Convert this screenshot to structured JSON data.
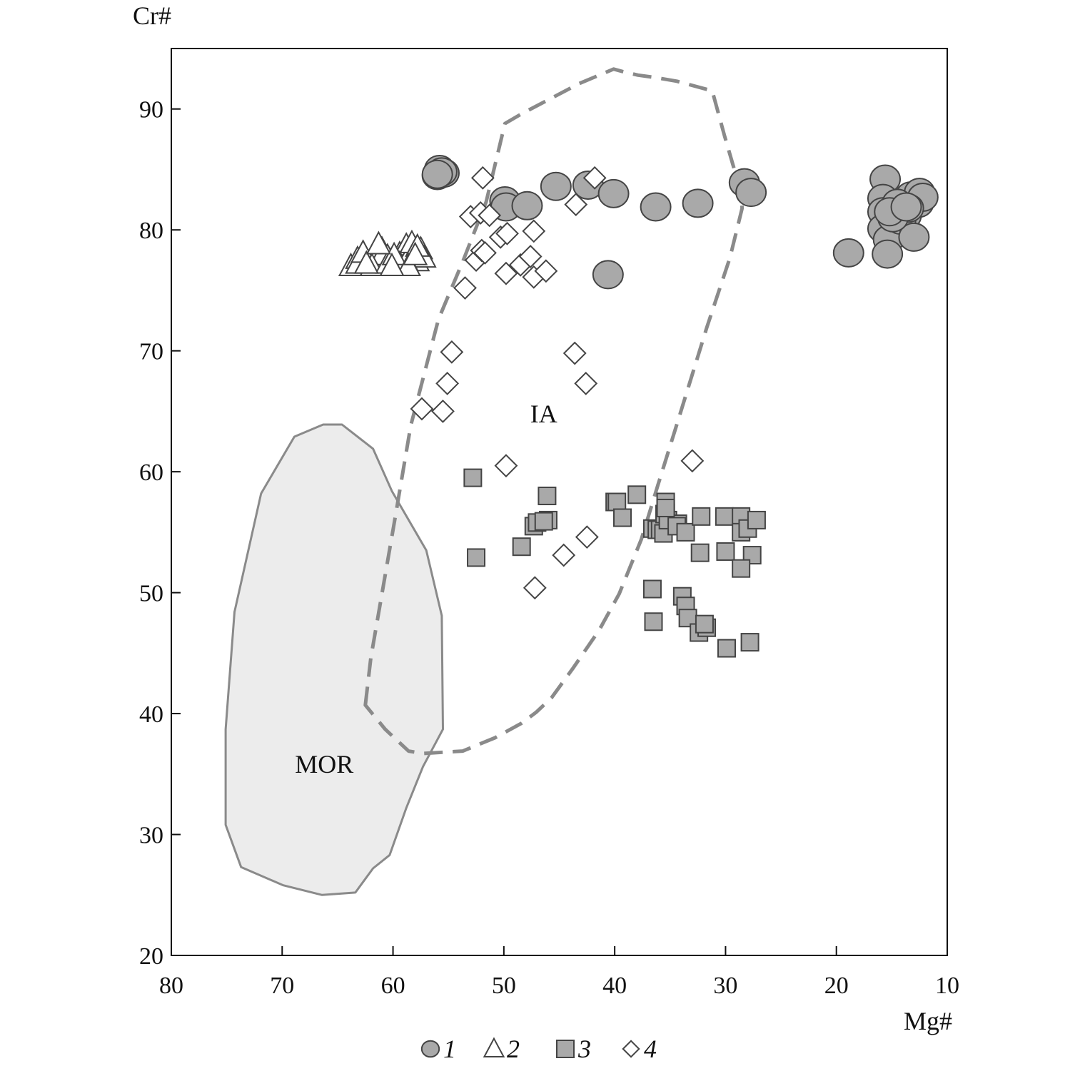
{
  "chart_data": {
    "type": "scatter",
    "xlabel": "Mg#",
    "ylabel": "Cr#",
    "xlim": [
      80,
      10
    ],
    "ylim": [
      20,
      95
    ],
    "x_ticks": [
      "80",
      "70",
      "60",
      "50",
      "40",
      "30",
      "20",
      "10"
    ],
    "y_ticks": [
      "20",
      "30",
      "40",
      "50",
      "60",
      "70",
      "80",
      "90"
    ],
    "grid": false,
    "legend_position": "bottom-center",
    "colors": {
      "marker_fill": "#a9a9a9",
      "marker_stroke": "#444444",
      "field_stroke": "#8a8a8a",
      "mor_fill": "#ececec"
    },
    "fields": [
      {
        "name": "MOR",
        "style": "solid-filled",
        "points": [
          [
            75.1,
            38.7
          ],
          [
            75.1,
            30.8
          ],
          [
            73.7,
            27.3
          ],
          [
            69.9,
            25.8
          ],
          [
            66.4,
            25.0
          ],
          [
            63.4,
            25.2
          ],
          [
            61.8,
            27.2
          ],
          [
            60.3,
            28.3
          ],
          [
            58.8,
            32.2
          ],
          [
            57.3,
            35.6
          ],
          [
            55.5,
            38.7
          ],
          [
            55.6,
            48.1
          ],
          [
            57.0,
            53.5
          ],
          [
            60.1,
            58.4
          ],
          [
            61.8,
            61.9
          ],
          [
            64.6,
            63.9
          ],
          [
            66.3,
            63.9
          ],
          [
            68.9,
            62.9
          ],
          [
            71.9,
            58.2
          ],
          [
            74.3,
            48.4
          ]
        ]
      },
      {
        "name": "IA",
        "style": "dashed",
        "points": [
          [
            62.5,
            40.7
          ],
          [
            62.0,
            44.6
          ],
          [
            59.9,
            55.7
          ],
          [
            58.4,
            63.8
          ],
          [
            55.9,
            72.6
          ],
          [
            53.7,
            77.4
          ],
          [
            51.6,
            82.3
          ],
          [
            49.9,
            88.8
          ],
          [
            48.4,
            89.6
          ],
          [
            45.7,
            90.9
          ],
          [
            43.2,
            92.1
          ],
          [
            40.1,
            93.3
          ],
          [
            39.3,
            93.1
          ],
          [
            37.9,
            92.8
          ],
          [
            36.3,
            92.6
          ],
          [
            34.4,
            92.3
          ],
          [
            31.2,
            91.5
          ],
          [
            30.1,
            87.8
          ],
          [
            28.7,
            83.4
          ],
          [
            28.5,
            81.8
          ],
          [
            29.6,
            77.7
          ],
          [
            31.7,
            71.9
          ],
          [
            34.3,
            64.2
          ],
          [
            36.1,
            58.9
          ],
          [
            37.6,
            54.4
          ],
          [
            39.6,
            49.9
          ],
          [
            41.4,
            46.9
          ],
          [
            43.8,
            43.7
          ],
          [
            45.7,
            41.3
          ],
          [
            47.1,
            40.1
          ],
          [
            48.4,
            39.2
          ],
          [
            50.8,
            38.0
          ],
          [
            52.4,
            37.4
          ],
          [
            53.7,
            36.9
          ],
          [
            57.3,
            36.7
          ],
          [
            58.6,
            36.9
          ],
          [
            60.7,
            38.7
          ]
        ]
      }
    ],
    "region_labels": [
      {
        "text": "MOR",
        "x": 66.2,
        "y": 35.8
      },
      {
        "text": "IA",
        "x": 46.4,
        "y": 64.8
      }
    ],
    "series": [
      {
        "name": "1",
        "marker": "circle",
        "points": [
          [
            55.8,
            85.0
          ],
          [
            56.0,
            84.5
          ],
          [
            55.4,
            84.7
          ],
          [
            55.6,
            84.8
          ],
          [
            56.0,
            84.6
          ],
          [
            49.9,
            82.4
          ],
          [
            49.8,
            81.9
          ],
          [
            47.9,
            82.0
          ],
          [
            45.3,
            83.6
          ],
          [
            42.4,
            83.7
          ],
          [
            40.1,
            83.0
          ],
          [
            36.3,
            81.9
          ],
          [
            32.5,
            82.2
          ],
          [
            28.3,
            83.9
          ],
          [
            27.7,
            83.1
          ],
          [
            40.6,
            76.3
          ],
          [
            18.9,
            78.1
          ],
          [
            15.6,
            84.2
          ],
          [
            15.8,
            82.6
          ],
          [
            15.8,
            81.5
          ],
          [
            15.8,
            80.1
          ],
          [
            15.3,
            79.2
          ],
          [
            15.4,
            78.0
          ],
          [
            13.3,
            82.8
          ],
          [
            13.7,
            81.2
          ],
          [
            14.2,
            80.8
          ],
          [
            12.6,
            82.2
          ],
          [
            12.5,
            83.1
          ],
          [
            12.2,
            82.7
          ],
          [
            13.0,
            79.4
          ],
          [
            13.5,
            81.8
          ],
          [
            14.5,
            82.2
          ],
          [
            14.9,
            81.0
          ],
          [
            15.2,
            81.5
          ],
          [
            13.7,
            81.9
          ]
        ]
      },
      {
        "name": "2",
        "marker": "triangle",
        "points": [
          [
            63.8,
            77.0
          ],
          [
            63.2,
            77.6
          ],
          [
            62.7,
            77.9
          ],
          [
            62.1,
            77.4
          ],
          [
            61.6,
            78.0
          ],
          [
            61.0,
            78.4
          ],
          [
            60.5,
            77.8
          ],
          [
            59.9,
            77.2
          ],
          [
            59.4,
            78.0
          ],
          [
            58.8,
            78.7
          ],
          [
            58.3,
            78.2
          ],
          [
            57.8,
            77.4
          ],
          [
            57.5,
            78.4
          ],
          [
            57.2,
            77.7
          ],
          [
            63.2,
            77.2
          ],
          [
            62.7,
            78.1
          ],
          [
            61.6,
            77.5
          ],
          [
            61.0,
            77.9
          ],
          [
            60.0,
            77.6
          ],
          [
            59.4,
            77.2
          ],
          [
            58.8,
            77.4
          ],
          [
            58.3,
            78.9
          ],
          [
            57.8,
            78.6
          ],
          [
            61.9,
            77.0
          ],
          [
            60.5,
            77.2
          ],
          [
            59.9,
            77.9
          ],
          [
            58.6,
            77.0
          ],
          [
            58.0,
            77.9
          ],
          [
            62.4,
            77.2
          ],
          [
            61.3,
            78.8
          ],
          [
            60.1,
            77.0
          ]
        ]
      },
      {
        "name": "3",
        "marker": "square",
        "points": [
          [
            52.8,
            59.5
          ],
          [
            52.5,
            52.9
          ],
          [
            48.4,
            53.8
          ],
          [
            47.3,
            55.5
          ],
          [
            47.0,
            55.8
          ],
          [
            46.1,
            58.0
          ],
          [
            46.0,
            56.0
          ],
          [
            46.4,
            55.9
          ],
          [
            40.0,
            57.5
          ],
          [
            39.8,
            57.5
          ],
          [
            39.3,
            56.2
          ],
          [
            38.0,
            58.1
          ],
          [
            36.6,
            55.3
          ],
          [
            36.2,
            55.2
          ],
          [
            35.9,
            55.2
          ],
          [
            35.6,
            54.9
          ],
          [
            35.4,
            57.5
          ],
          [
            35.4,
            56.6
          ],
          [
            35.5,
            56.5
          ],
          [
            35.2,
            56.0
          ],
          [
            34.3,
            55.7
          ],
          [
            34.4,
            55.5
          ],
          [
            33.6,
            55.0
          ],
          [
            32.2,
            56.3
          ],
          [
            32.3,
            53.3
          ],
          [
            30.1,
            56.3
          ],
          [
            30.0,
            53.4
          ],
          [
            28.6,
            56.3
          ],
          [
            28.6,
            55.0
          ],
          [
            28.0,
            55.3
          ],
          [
            27.2,
            56.0
          ],
          [
            27.6,
            53.1
          ],
          [
            28.6,
            52.0
          ],
          [
            36.6,
            50.3
          ],
          [
            36.5,
            47.6
          ],
          [
            33.9,
            49.7
          ],
          [
            33.6,
            48.9
          ],
          [
            33.4,
            47.9
          ],
          [
            32.4,
            46.7
          ],
          [
            31.7,
            47.1
          ],
          [
            31.9,
            47.4
          ],
          [
            29.9,
            45.4
          ],
          [
            27.8,
            45.9
          ],
          [
            35.4,
            57.0
          ]
        ]
      },
      {
        "name": "4",
        "marker": "diamond",
        "points": [
          [
            51.9,
            84.3
          ],
          [
            53.0,
            81.1
          ],
          [
            52.1,
            81.4
          ],
          [
            51.3,
            81.2
          ],
          [
            50.3,
            79.4
          ],
          [
            49.7,
            79.7
          ],
          [
            47.3,
            79.9
          ],
          [
            52.5,
            77.5
          ],
          [
            52.0,
            78.3
          ],
          [
            51.7,
            78.1
          ],
          [
            49.8,
            76.4
          ],
          [
            48.5,
            77.1
          ],
          [
            47.6,
            77.8
          ],
          [
            47.3,
            76.1
          ],
          [
            46.2,
            76.6
          ],
          [
            43.5,
            82.1
          ],
          [
            41.8,
            84.3
          ],
          [
            53.5,
            75.2
          ],
          [
            54.7,
            69.9
          ],
          [
            55.1,
            67.3
          ],
          [
            57.4,
            65.2
          ],
          [
            55.5,
            65.0
          ],
          [
            43.6,
            69.8
          ],
          [
            42.6,
            67.3
          ],
          [
            33.0,
            60.9
          ],
          [
            49.8,
            60.5
          ],
          [
            42.5,
            54.6
          ],
          [
            44.6,
            53.1
          ],
          [
            47.2,
            50.4
          ]
        ]
      }
    ]
  },
  "legend": {
    "items": [
      {
        "marker": "circle",
        "label": "1"
      },
      {
        "marker": "triangle",
        "label": "2"
      },
      {
        "marker": "square",
        "label": "3"
      },
      {
        "marker": "diamond",
        "label": "4"
      }
    ]
  }
}
